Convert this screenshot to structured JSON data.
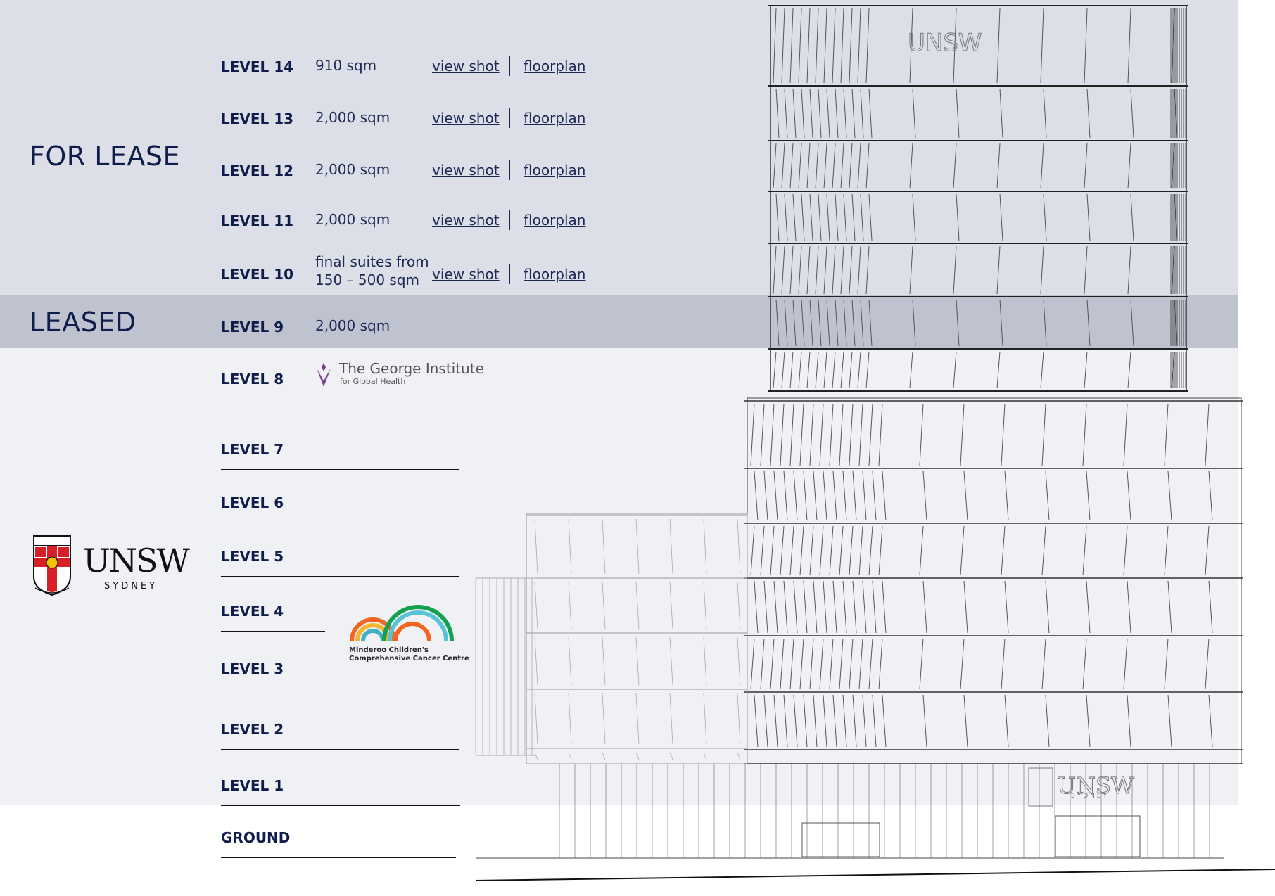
{
  "sections": {
    "for_lease": "FOR LEASE",
    "leased": "LEASED"
  },
  "lease_levels": [
    {
      "level": "LEVEL 14",
      "area": "910 sqm",
      "view": "view shot",
      "plan": "floorplan"
    },
    {
      "level": "LEVEL 13",
      "area": "2,000 sqm",
      "view": "view shot",
      "plan": "floorplan"
    },
    {
      "level": "LEVEL 12",
      "area": "2,000 sqm",
      "view": "view shot",
      "plan": "floorplan"
    },
    {
      "level": "LEVEL 11",
      "area": "2,000 sqm",
      "view": "view shot",
      "plan": "floorplan"
    },
    {
      "level": "LEVEL 10",
      "area_line1": "final suites from",
      "area_line2": "150 – 500 sqm",
      "view": "view shot",
      "plan": "floorplan"
    }
  ],
  "leased_levels": [
    {
      "level": "LEVEL 9",
      "area": "2,000 sqm"
    },
    {
      "level": "LEVEL 8"
    },
    {
      "level": "LEVEL 7"
    },
    {
      "level": "LEVEL 6"
    },
    {
      "level": "LEVEL 5"
    },
    {
      "level": "LEVEL 4"
    },
    {
      "level": "LEVEL 3"
    },
    {
      "level": "LEVEL 2"
    },
    {
      "level": "LEVEL 1"
    },
    {
      "level": "GROUND"
    }
  ],
  "tenants": {
    "george_name": "The George Institute",
    "george_sub": "for Global Health",
    "minderoo_line1": "Minderoo Children's",
    "minderoo_line2": "Comprehensive Cancer Centre",
    "unsw_name": "UNSW",
    "unsw_sub": "SYDNEY"
  },
  "building_signage": {
    "top": "UNSW",
    "base": "UNSW",
    "base_sub": "SYDNEY"
  },
  "colors": {
    "navy": "#0f1d4a",
    "lease_band": "#dcdfe7",
    "leased_band": "#bfc3cf",
    "light_band": "#f0f1f4"
  }
}
